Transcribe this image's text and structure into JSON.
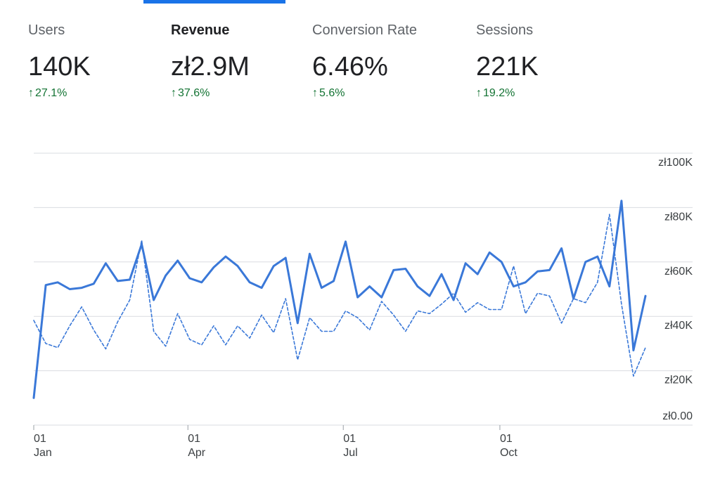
{
  "metrics": [
    {
      "label": "Users",
      "value": "140K",
      "delta": "27.1%",
      "active": false
    },
    {
      "label": "Revenue",
      "value": "zł2.9M",
      "delta": "37.6%",
      "active": true
    },
    {
      "label": "Conversion Rate",
      "value": "6.46%",
      "delta": "5.6%",
      "active": false
    },
    {
      "label": "Sessions",
      "value": "221K",
      "delta": "19.2%",
      "active": false
    }
  ],
  "colors": {
    "accent": "#1a73e8",
    "series": "#3a78d8",
    "positive": "#137333",
    "grid": "#dadce0"
  },
  "icons": {
    "delta_arrow": "arrow-up-icon"
  },
  "chart_data": {
    "type": "line",
    "title": "",
    "xlabel": "",
    "ylabel": "",
    "ylim": [
      0,
      100000
    ],
    "yticks": [
      {
        "value": 100000,
        "label": "zł100K"
      },
      {
        "value": 80000,
        "label": "zł80K"
      },
      {
        "value": 60000,
        "label": "zł60K"
      },
      {
        "value": 40000,
        "label": "zł40K"
      },
      {
        "value": 20000,
        "label": "zł20K"
      },
      {
        "value": 0,
        "label": "zł0.00"
      }
    ],
    "xticks": [
      {
        "index": 0,
        "day": "01",
        "month": "Jan"
      },
      {
        "index": 12.6,
        "day": "01",
        "month": "Apr"
      },
      {
        "index": 25.3,
        "day": "01",
        "month": "Jul"
      },
      {
        "index": 38.1,
        "day": "01",
        "month": "Oct"
      }
    ],
    "x_count": 51,
    "grid": true,
    "series": [
      {
        "style": "solid",
        "values": [
          10000,
          51500,
          52500,
          50000,
          50500,
          52000,
          59500,
          53000,
          53500,
          66500,
          46000,
          55000,
          60500,
          54000,
          52500,
          58000,
          62000,
          58500,
          52500,
          50500,
          58500,
          61500,
          37500,
          63000,
          50500,
          53000,
          67500,
          47000,
          51000,
          47000,
          57000,
          57500,
          51000,
          47500,
          55500,
          46000,
          59500,
          55500,
          63500,
          60000,
          51000,
          52500,
          56500,
          57000,
          65000,
          46500,
          60000,
          62000,
          51000,
          82500,
          27500,
          47500
        ]
      },
      {
        "style": "dashed",
        "values": [
          38500,
          30000,
          28500,
          36500,
          43500,
          35000,
          28000,
          38000,
          46000,
          68000,
          34500,
          29000,
          41000,
          31500,
          29500,
          36500,
          29500,
          36500,
          32000,
          40500,
          34000,
          46500,
          24000,
          39500,
          34500,
          34500,
          42000,
          39500,
          35000,
          45500,
          40500,
          34500,
          42000,
          41000,
          44500,
          48500,
          41500,
          45000,
          42500,
          42500,
          58500,
          41000,
          48500,
          47500,
          37500,
          46500,
          45000,
          52500,
          77500,
          44500,
          18000,
          28500
        ]
      }
    ]
  }
}
